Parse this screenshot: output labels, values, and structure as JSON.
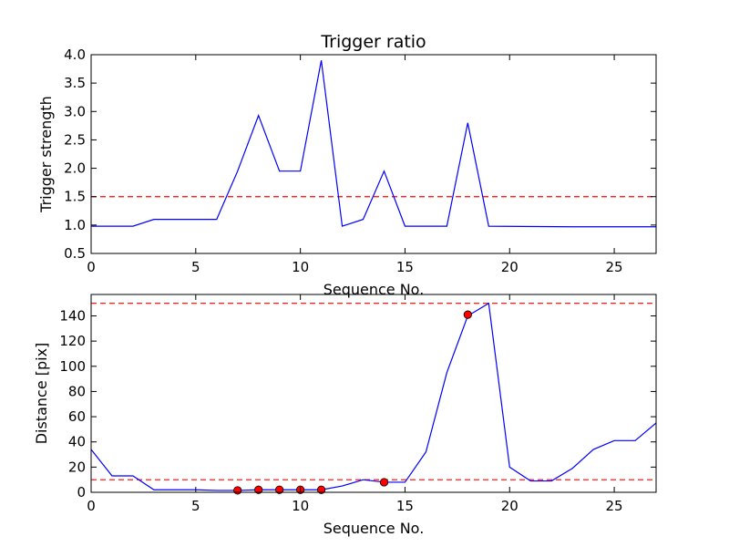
{
  "chart_data": [
    {
      "type": "line",
      "title": "Trigger ratio",
      "xlabel": "Sequence No.",
      "ylabel": "Trigger strength",
      "xlim": [
        0,
        27
      ],
      "ylim": [
        0.5,
        4.0
      ],
      "xticks": [
        "0",
        "5",
        "10",
        "15",
        "20",
        "25"
      ],
      "yticks": [
        "0.5",
        "1.0",
        "1.5",
        "2.0",
        "2.5",
        "3.0",
        "3.5",
        "4.0"
      ],
      "grid": false,
      "series": [
        {
          "x": [
            0,
            2,
            3,
            6,
            7,
            8,
            9,
            10,
            11,
            12,
            13,
            14,
            15,
            17,
            18,
            19,
            23,
            27
          ],
          "y": [
            0.98,
            0.98,
            1.1,
            1.1,
            1.95,
            2.93,
            1.95,
            1.95,
            3.9,
            0.98,
            1.1,
            1.95,
            0.98,
            0.98,
            2.8,
            0.98,
            0.97,
            0.97
          ],
          "color": "#0000ff",
          "style": "solid"
        }
      ],
      "threshold_lines": [
        {
          "y": 1.5,
          "color": "#ff0000",
          "style": "dashed"
        }
      ]
    },
    {
      "type": "line",
      "title": "",
      "xlabel": "Sequence No.",
      "ylabel": "Distance [pix]",
      "xlim": [
        0,
        27
      ],
      "ylim": [
        0,
        157
      ],
      "xticks": [
        "0",
        "5",
        "10",
        "15",
        "20",
        "25"
      ],
      "yticks": [
        "0",
        "20",
        "40",
        "60",
        "80",
        "100",
        "120",
        "140"
      ],
      "grid": false,
      "series": [
        {
          "x": [
            0,
            1,
            2,
            3,
            4,
            5,
            6,
            7,
            8,
            9,
            10,
            11,
            12,
            13,
            14,
            15,
            16,
            17,
            18,
            19,
            20,
            21,
            22,
            23,
            24,
            25,
            26,
            27
          ],
          "y": [
            34,
            13,
            13,
            2,
            2,
            2,
            1.5,
            1.5,
            2,
            2,
            2,
            2,
            5,
            10,
            8,
            8,
            32,
            95,
            140,
            150,
            20,
            9,
            9,
            19,
            34,
            41,
            41,
            55
          ],
          "color": "#0000ff",
          "style": "solid"
        }
      ],
      "markers": {
        "x": [
          7,
          8,
          9,
          10,
          11,
          14,
          18
        ],
        "y": [
          1.5,
          2,
          2,
          2,
          2,
          8,
          141
        ],
        "color": "#ff0000"
      },
      "threshold_lines": [
        {
          "y": 150,
          "color": "#ff0000",
          "style": "dashed"
        },
        {
          "y": 10,
          "color": "#ff0000",
          "style": "dashed"
        }
      ]
    }
  ]
}
